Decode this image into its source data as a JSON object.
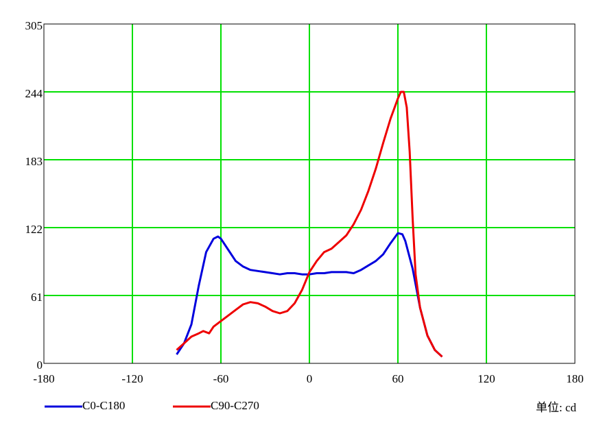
{
  "chart_data": {
    "type": "line",
    "xlim": [
      -180,
      180
    ],
    "xticks": [
      -180,
      -120,
      -60,
      0,
      60,
      120,
      180
    ],
    "ylim": [
      0,
      305
    ],
    "yticks": [
      0,
      61,
      122,
      183,
      244,
      305
    ],
    "grid": true,
    "grid_color": "#00e000",
    "unit_label": "单位: cd",
    "series": [
      {
        "name": "C0-C180",
        "color": "#0000dd",
        "x": [
          -90,
          -85,
          -80,
          -75,
          -70,
          -65,
          -62,
          -60,
          -55,
          -50,
          -45,
          -40,
          -35,
          -30,
          -25,
          -20,
          -15,
          -10,
          -5,
          0,
          5,
          10,
          15,
          20,
          25,
          30,
          35,
          40,
          45,
          50,
          55,
          60,
          63,
          65,
          70,
          75,
          80,
          85,
          90
        ],
        "values": [
          8,
          18,
          35,
          70,
          100,
          112,
          114,
          112,
          102,
          92,
          87,
          84,
          83,
          82,
          81,
          80,
          81,
          81,
          80,
          80,
          81,
          81,
          82,
          82,
          82,
          81,
          84,
          88,
          92,
          98,
          108,
          117,
          116,
          110,
          85,
          50,
          25,
          12,
          6
        ]
      },
      {
        "name": "C90-C270",
        "color": "#ee0000",
        "x": [
          -90,
          -85,
          -80,
          -75,
          -72,
          -68,
          -65,
          -60,
          -55,
          -50,
          -45,
          -40,
          -35,
          -30,
          -25,
          -20,
          -15,
          -10,
          -5,
          0,
          5,
          10,
          15,
          20,
          25,
          30,
          35,
          40,
          45,
          50,
          55,
          60,
          62,
          64,
          66,
          68,
          70,
          72,
          75,
          80,
          85,
          90
        ],
        "values": [
          12,
          18,
          24,
          27,
          29,
          27,
          33,
          38,
          43,
          48,
          53,
          55,
          54,
          51,
          47,
          45,
          47,
          54,
          66,
          82,
          92,
          100,
          103,
          109,
          115,
          125,
          138,
          155,
          175,
          198,
          220,
          238,
          244,
          244,
          230,
          190,
          130,
          80,
          50,
          25,
          12,
          6
        ]
      }
    ]
  }
}
